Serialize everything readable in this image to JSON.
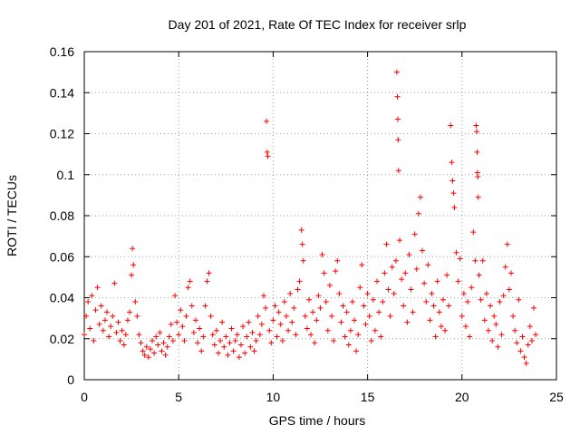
{
  "chart_data": {
    "type": "scatter",
    "title": "Day 201 of 2021, Rate Of TEC Index for receiver srlp",
    "xlabel": "GPS time / hours",
    "ylabel": "ROTI / TECUs",
    "xlim": [
      0,
      25
    ],
    "ylim": [
      0,
      0.16
    ],
    "x_ticks": [
      0,
      5,
      10,
      15,
      20,
      25
    ],
    "x_tick_labels": [
      "0",
      "5",
      "10",
      "15",
      "20",
      "25"
    ],
    "y_ticks": [
      0,
      0.02,
      0.04,
      0.06,
      0.08,
      0.1,
      0.12,
      0.14,
      0.16
    ],
    "y_tick_labels": [
      "0",
      "0.02",
      "0.04",
      "0.06",
      "0.08",
      "0.1",
      "0.12",
      "0.14",
      "0.16"
    ],
    "grid": true,
    "marker": "+",
    "color": "#ff0000",
    "series": [
      {
        "name": "ROTI",
        "points": [
          [
            0.0,
            0.022
          ],
          [
            0.1,
            0.031
          ],
          [
            0.2,
            0.038
          ],
          [
            0.3,
            0.025
          ],
          [
            0.4,
            0.041
          ],
          [
            0.5,
            0.019
          ],
          [
            0.6,
            0.034
          ],
          [
            0.7,
            0.045
          ],
          [
            0.8,
            0.027
          ],
          [
            0.9,
            0.036
          ],
          [
            1.0,
            0.024
          ],
          [
            1.1,
            0.029
          ],
          [
            1.2,
            0.033
          ],
          [
            1.3,
            0.021
          ],
          [
            1.4,
            0.026
          ],
          [
            1.5,
            0.031
          ],
          [
            1.6,
            0.047
          ],
          [
            1.7,
            0.023
          ],
          [
            1.8,
            0.028
          ],
          [
            1.9,
            0.019
          ],
          [
            2.0,
            0.024
          ],
          [
            2.1,
            0.017
          ],
          [
            2.2,
            0.022
          ],
          [
            2.3,
            0.029
          ],
          [
            2.4,
            0.033
          ],
          [
            2.5,
            0.051
          ],
          [
            2.55,
            0.064
          ],
          [
            2.6,
            0.056
          ],
          [
            2.7,
            0.038
          ],
          [
            2.8,
            0.031
          ],
          [
            2.9,
            0.022
          ],
          [
            3.0,
            0.018
          ],
          [
            3.1,
            0.014
          ],
          [
            3.2,
            0.012
          ],
          [
            3.3,
            0.016
          ],
          [
            3.4,
            0.011
          ],
          [
            3.5,
            0.015
          ],
          [
            3.6,
            0.019
          ],
          [
            3.7,
            0.013
          ],
          [
            3.8,
            0.021
          ],
          [
            3.9,
            0.017
          ],
          [
            4.0,
            0.023
          ],
          [
            4.1,
            0.014
          ],
          [
            4.2,
            0.018
          ],
          [
            4.3,
            0.012
          ],
          [
            4.4,
            0.016
          ],
          [
            4.5,
            0.021
          ],
          [
            4.6,
            0.027
          ],
          [
            4.7,
            0.019
          ],
          [
            4.8,
            0.041
          ],
          [
            4.9,
            0.028
          ],
          [
            5.0,
            0.022
          ],
          [
            5.1,
            0.034
          ],
          [
            5.2,
            0.026
          ],
          [
            5.3,
            0.019
          ],
          [
            5.4,
            0.031
          ],
          [
            5.5,
            0.045
          ],
          [
            5.6,
            0.048
          ],
          [
            5.7,
            0.036
          ],
          [
            5.8,
            0.023
          ],
          [
            5.9,
            0.029
          ],
          [
            6.0,
            0.018
          ],
          [
            6.1,
            0.025
          ],
          [
            6.2,
            0.014
          ],
          [
            6.3,
            0.021
          ],
          [
            6.4,
            0.036
          ],
          [
            6.5,
            0.048
          ],
          [
            6.6,
            0.052
          ],
          [
            6.7,
            0.031
          ],
          [
            6.8,
            0.022
          ],
          [
            6.9,
            0.017
          ],
          [
            7.0,
            0.024
          ],
          [
            7.1,
            0.013
          ],
          [
            7.2,
            0.019
          ],
          [
            7.3,
            0.028
          ],
          [
            7.4,
            0.016
          ],
          [
            7.5,
            0.021
          ],
          [
            7.6,
            0.012
          ],
          [
            7.7,
            0.018
          ],
          [
            7.8,
            0.025
          ],
          [
            7.9,
            0.014
          ],
          [
            8.0,
            0.019
          ],
          [
            8.1,
            0.022
          ],
          [
            8.2,
            0.011
          ],
          [
            8.3,
            0.017
          ],
          [
            8.4,
            0.026
          ],
          [
            8.5,
            0.013
          ],
          [
            8.6,
            0.021
          ],
          [
            8.7,
            0.028
          ],
          [
            8.8,
            0.016
          ],
          [
            8.9,
            0.023
          ],
          [
            9.0,
            0.014
          ],
          [
            9.1,
            0.019
          ],
          [
            9.2,
            0.031
          ],
          [
            9.3,
            0.022
          ],
          [
            9.4,
            0.027
          ],
          [
            9.5,
            0.041
          ],
          [
            9.6,
            0.035
          ],
          [
            9.65,
            0.126
          ],
          [
            9.68,
            0.111
          ],
          [
            9.72,
            0.109
          ],
          [
            9.8,
            0.024
          ],
          [
            9.9,
            0.018
          ],
          [
            10.0,
            0.029
          ],
          [
            10.1,
            0.036
          ],
          [
            10.2,
            0.021
          ],
          [
            10.3,
            0.033
          ],
          [
            10.4,
            0.027
          ],
          [
            10.5,
            0.019
          ],
          [
            10.6,
            0.038
          ],
          [
            10.7,
            0.031
          ],
          [
            10.8,
            0.024
          ],
          [
            10.9,
            0.042
          ],
          [
            11.0,
            0.028
          ],
          [
            11.1,
            0.035
          ],
          [
            11.2,
            0.022
          ],
          [
            11.3,
            0.044
          ],
          [
            11.4,
            0.048
          ],
          [
            11.5,
            0.073
          ],
          [
            11.55,
            0.066
          ],
          [
            11.6,
            0.058
          ],
          [
            11.7,
            0.031
          ],
          [
            11.8,
            0.025
          ],
          [
            11.9,
            0.039
          ],
          [
            12.0,
            0.022
          ],
          [
            12.1,
            0.033
          ],
          [
            12.2,
            0.018
          ],
          [
            12.3,
            0.029
          ],
          [
            12.4,
            0.041
          ],
          [
            12.5,
            0.035
          ],
          [
            12.6,
            0.061
          ],
          [
            12.7,
            0.052
          ],
          [
            12.8,
            0.038
          ],
          [
            12.9,
            0.024
          ],
          [
            13.0,
            0.046
          ],
          [
            13.1,
            0.031
          ],
          [
            13.2,
            0.019
          ],
          [
            13.3,
            0.053
          ],
          [
            13.4,
            0.058
          ],
          [
            13.5,
            0.042
          ],
          [
            13.6,
            0.028
          ],
          [
            13.7,
            0.036
          ],
          [
            13.8,
            0.021
          ],
          [
            13.9,
            0.033
          ],
          [
            14.0,
            0.017
          ],
          [
            14.1,
            0.024
          ],
          [
            14.2,
            0.038
          ],
          [
            14.3,
            0.029
          ],
          [
            14.4,
            0.014
          ],
          [
            14.5,
            0.022
          ],
          [
            14.6,
            0.045
          ],
          [
            14.7,
            0.056
          ],
          [
            14.8,
            0.036
          ],
          [
            14.9,
            0.027
          ],
          [
            15.0,
            0.042
          ],
          [
            15.1,
            0.031
          ],
          [
            15.2,
            0.019
          ],
          [
            15.3,
            0.039
          ],
          [
            15.4,
            0.024
          ],
          [
            15.5,
            0.048
          ],
          [
            15.6,
            0.033
          ],
          [
            15.7,
            0.021
          ],
          [
            15.8,
            0.038
          ],
          [
            15.9,
            0.052
          ],
          [
            16.0,
            0.066
          ],
          [
            16.1,
            0.044
          ],
          [
            16.2,
            0.031
          ],
          [
            16.3,
            0.055
          ],
          [
            16.4,
            0.042
          ],
          [
            16.5,
            0.058
          ],
          [
            16.55,
            0.15
          ],
          [
            16.58,
            0.138
          ],
          [
            16.6,
            0.127
          ],
          [
            16.62,
            0.117
          ],
          [
            16.64,
            0.102
          ],
          [
            16.7,
            0.068
          ],
          [
            16.8,
            0.049
          ],
          [
            16.9,
            0.036
          ],
          [
            17.0,
            0.052
          ],
          [
            17.1,
            0.028
          ],
          [
            17.2,
            0.061
          ],
          [
            17.3,
            0.044
          ],
          [
            17.4,
            0.033
          ],
          [
            17.5,
            0.071
          ],
          [
            17.6,
            0.054
          ],
          [
            17.7,
            0.081
          ],
          [
            17.8,
            0.089
          ],
          [
            17.9,
            0.063
          ],
          [
            18.0,
            0.047
          ],
          [
            18.1,
            0.038
          ],
          [
            18.2,
            0.056
          ],
          [
            18.3,
            0.029
          ],
          [
            18.4,
            0.042
          ],
          [
            18.5,
            0.036
          ],
          [
            18.6,
            0.021
          ],
          [
            18.7,
            0.048
          ],
          [
            18.8,
            0.033
          ],
          [
            18.9,
            0.026
          ],
          [
            19.0,
            0.039
          ],
          [
            19.1,
            0.024
          ],
          [
            19.2,
            0.051
          ],
          [
            19.3,
            0.036
          ],
          [
            19.4,
            0.124
          ],
          [
            19.45,
            0.106
          ],
          [
            19.5,
            0.097
          ],
          [
            19.55,
            0.091
          ],
          [
            19.6,
            0.084
          ],
          [
            19.7,
            0.062
          ],
          [
            19.8,
            0.048
          ],
          [
            19.9,
            0.059
          ],
          [
            20.0,
            0.031
          ],
          [
            20.1,
            0.042
          ],
          [
            20.2,
            0.026
          ],
          [
            20.3,
            0.038
          ],
          [
            20.4,
            0.021
          ],
          [
            20.5,
            0.045
          ],
          [
            20.6,
            0.072
          ],
          [
            20.7,
            0.058
          ],
          [
            20.75,
            0.124
          ],
          [
            20.78,
            0.121
          ],
          [
            20.8,
            0.111
          ],
          [
            20.82,
            0.101
          ],
          [
            20.84,
            0.099
          ],
          [
            20.86,
            0.089
          ],
          [
            20.9,
            0.051
          ],
          [
            21.0,
            0.039
          ],
          [
            21.1,
            0.058
          ],
          [
            21.2,
            0.029
          ],
          [
            21.3,
            0.042
          ],
          [
            21.4,
            0.024
          ],
          [
            21.5,
            0.036
          ],
          [
            21.6,
            0.019
          ],
          [
            21.7,
            0.031
          ],
          [
            21.8,
            0.027
          ],
          [
            21.9,
            0.016
          ],
          [
            22.0,
            0.038
          ],
          [
            22.1,
            0.022
          ],
          [
            22.2,
            0.041
          ],
          [
            22.3,
            0.055
          ],
          [
            22.4,
            0.066
          ],
          [
            22.5,
            0.044
          ],
          [
            22.6,
            0.052
          ],
          [
            22.7,
            0.031
          ],
          [
            22.8,
            0.024
          ],
          [
            22.9,
            0.018
          ],
          [
            23.0,
            0.039
          ],
          [
            23.1,
            0.014
          ],
          [
            23.2,
            0.021
          ],
          [
            23.3,
            0.011
          ],
          [
            23.4,
            0.008
          ],
          [
            23.5,
            0.017
          ],
          [
            23.6,
            0.026
          ],
          [
            23.7,
            0.019
          ],
          [
            23.8,
            0.035
          ],
          [
            23.9,
            0.022
          ]
        ]
      }
    ]
  }
}
